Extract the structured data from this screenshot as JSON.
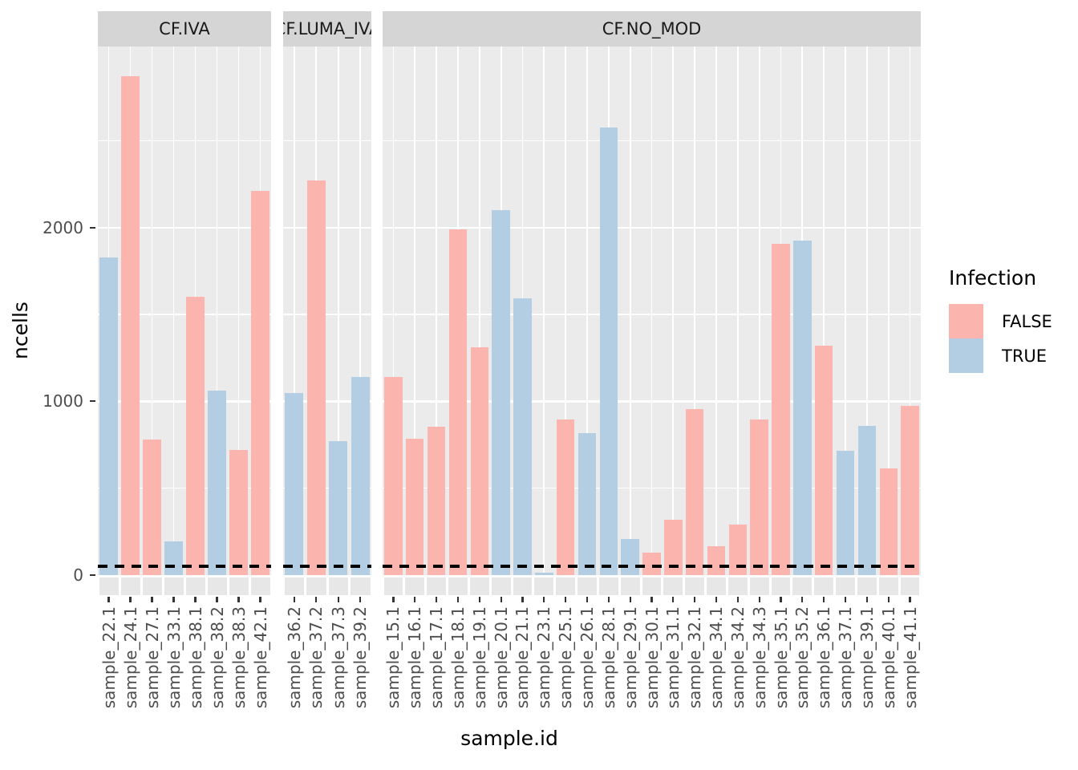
{
  "figure": {
    "y_axis": {
      "title": "ncells",
      "tick_labels": [
        "0",
        "1000",
        "2000"
      ],
      "tick_values": [
        0,
        1000,
        2000
      ],
      "minor_values": [
        500,
        1500,
        2500
      ]
    },
    "x_axis": {
      "title": "sample.id"
    },
    "legend": {
      "title": "Infection",
      "items": [
        {
          "label": "FALSE",
          "color": "#FBB4AE"
        },
        {
          "label": "TRUE",
          "color": "#B3CDE3"
        }
      ]
    },
    "colors": {
      "panel_bg": "#EBEBEB",
      "strip_bg": "#D5D5D5",
      "grid": "#FFFFFF",
      "tick": "#333333",
      "axis_text": "#4D4D4D",
      "strip_text": "#1A1A1A",
      "false_fill": "#FBB4AE",
      "true_fill": "#B3CDE3",
      "dashed_line": "#000000"
    }
  },
  "chart_data": {
    "type": "bar",
    "title": "",
    "xlabel": "sample.id",
    "ylabel": "ncells",
    "ylim": [
      0,
      2900
    ],
    "yticks": [
      0,
      1000,
      2000
    ],
    "grid": true,
    "legend_title": "Infection",
    "legend_position": "right",
    "groups": {
      "FALSE": "#FBB4AE",
      "TRUE": "#B3CDE3"
    },
    "dashed_hline_y": 50,
    "facets": [
      {
        "label": "CF.IVA",
        "bars": [
          {
            "sample_id": "sample_22.1",
            "infection": "TRUE",
            "ncells": 1830
          },
          {
            "sample_id": "sample_24.1",
            "infection": "FALSE",
            "ncells": 2870
          },
          {
            "sample_id": "sample_27.1",
            "infection": "FALSE",
            "ncells": 780
          },
          {
            "sample_id": "sample_33.1",
            "infection": "TRUE",
            "ncells": 195
          },
          {
            "sample_id": "sample_38.1",
            "infection": "FALSE",
            "ncells": 1600
          },
          {
            "sample_id": "sample_38.2",
            "infection": "TRUE",
            "ncells": 1060
          },
          {
            "sample_id": "sample_38.3",
            "infection": "FALSE",
            "ncells": 720
          },
          {
            "sample_id": "sample_42.1",
            "infection": "FALSE",
            "ncells": 2210
          }
        ]
      },
      {
        "label": "CF.LUMA_IVA",
        "bars": [
          {
            "sample_id": "sample_36.2",
            "infection": "TRUE",
            "ncells": 1050
          },
          {
            "sample_id": "sample_37.2",
            "infection": "FALSE",
            "ncells": 2270
          },
          {
            "sample_id": "sample_37.3",
            "infection": "TRUE",
            "ncells": 770
          },
          {
            "sample_id": "sample_39.2",
            "infection": "TRUE",
            "ncells": 1140
          }
        ]
      },
      {
        "label": "CF.NO_MOD",
        "bars": [
          {
            "sample_id": "sample_15.1",
            "infection": "FALSE",
            "ncells": 1140
          },
          {
            "sample_id": "sample_16.1",
            "infection": "FALSE",
            "ncells": 785
          },
          {
            "sample_id": "sample_17.1",
            "infection": "FALSE",
            "ncells": 855
          },
          {
            "sample_id": "sample_18.1",
            "infection": "FALSE",
            "ncells": 1990
          },
          {
            "sample_id": "sample_19.1",
            "infection": "FALSE",
            "ncells": 1310
          },
          {
            "sample_id": "sample_20.1",
            "infection": "TRUE",
            "ncells": 2100
          },
          {
            "sample_id": "sample_21.1",
            "infection": "TRUE",
            "ncells": 1595
          },
          {
            "sample_id": "sample_23.1",
            "infection": "TRUE",
            "ncells": 15
          },
          {
            "sample_id": "sample_25.1",
            "infection": "FALSE",
            "ncells": 895
          },
          {
            "sample_id": "sample_26.1",
            "infection": "TRUE",
            "ncells": 815
          },
          {
            "sample_id": "sample_28.1",
            "infection": "TRUE",
            "ncells": 2575
          },
          {
            "sample_id": "sample_29.1",
            "infection": "TRUE",
            "ncells": 210
          },
          {
            "sample_id": "sample_30.1",
            "infection": "FALSE",
            "ncells": 130
          },
          {
            "sample_id": "sample_31.1",
            "infection": "FALSE",
            "ncells": 320
          },
          {
            "sample_id": "sample_32.1",
            "infection": "FALSE",
            "ncells": 955
          },
          {
            "sample_id": "sample_34.1",
            "infection": "FALSE",
            "ncells": 165
          },
          {
            "sample_id": "sample_34.2",
            "infection": "FALSE",
            "ncells": 290
          },
          {
            "sample_id": "sample_34.3",
            "infection": "FALSE",
            "ncells": 895
          },
          {
            "sample_id": "sample_35.1",
            "infection": "FALSE",
            "ncells": 1905
          },
          {
            "sample_id": "sample_35.2",
            "infection": "TRUE",
            "ncells": 1925
          },
          {
            "sample_id": "sample_36.1",
            "infection": "FALSE",
            "ncells": 1320
          },
          {
            "sample_id": "sample_37.1",
            "infection": "TRUE",
            "ncells": 715
          },
          {
            "sample_id": "sample_39.1",
            "infection": "TRUE",
            "ncells": 860
          },
          {
            "sample_id": "sample_40.1",
            "infection": "FALSE",
            "ncells": 615
          },
          {
            "sample_id": "sample_41.1",
            "infection": "FALSE",
            "ncells": 975
          }
        ]
      }
    ]
  }
}
